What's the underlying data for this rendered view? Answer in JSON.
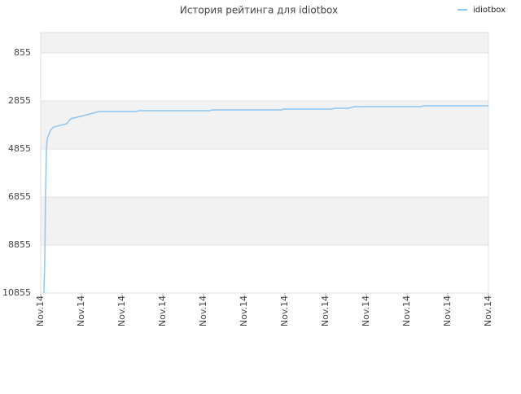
{
  "chart_data": {
    "type": "line",
    "title": "История рейтинга для idiotbox",
    "x": [
      0.08,
      0.1,
      0.12,
      0.14,
      0.16,
      0.24,
      0.32,
      0.64,
      0.74,
      1.44,
      2.36,
      2.4,
      4.16,
      4.2,
      5.92,
      5.96,
      7.16,
      7.2,
      7.56,
      7.7,
      9.36,
      9.4,
      11
    ],
    "series": [
      {
        "name": "idiotbox",
        "color": "#8ec6f2",
        "values": [
          10855,
          9498,
          6618,
          4922,
          4414,
          4075,
          3940,
          3804,
          3600,
          3296,
          3296,
          3262,
          3262,
          3228,
          3228,
          3194,
          3194,
          3160,
          3160,
          3092,
          3092,
          3058,
          3058
        ]
      }
    ],
    "xlim": [
      0,
      11
    ],
    "xticks": [
      {
        "value": 0,
        "label": "Nov.14"
      },
      {
        "value": 1,
        "label": "Nov.14"
      },
      {
        "value": 2,
        "label": "Nov.14"
      },
      {
        "value": 3,
        "label": "Nov.14"
      },
      {
        "value": 4,
        "label": "Nov.14"
      },
      {
        "value": 5,
        "label": "Nov.14"
      },
      {
        "value": 6,
        "label": "Nov.14"
      },
      {
        "value": 7,
        "label": "Nov.14"
      },
      {
        "value": 8,
        "label": "Nov.14"
      },
      {
        "value": 9,
        "label": "Nov.14"
      },
      {
        "value": 10,
        "label": "Nov.14"
      },
      {
        "value": 11,
        "label": "Nov.14"
      }
    ],
    "ylim": [
      10855,
      8
    ],
    "yticks": [
      855,
      2855,
      4855,
      6855,
      8855,
      10855
    ],
    "grid": true,
    "legend": "top-right"
  }
}
